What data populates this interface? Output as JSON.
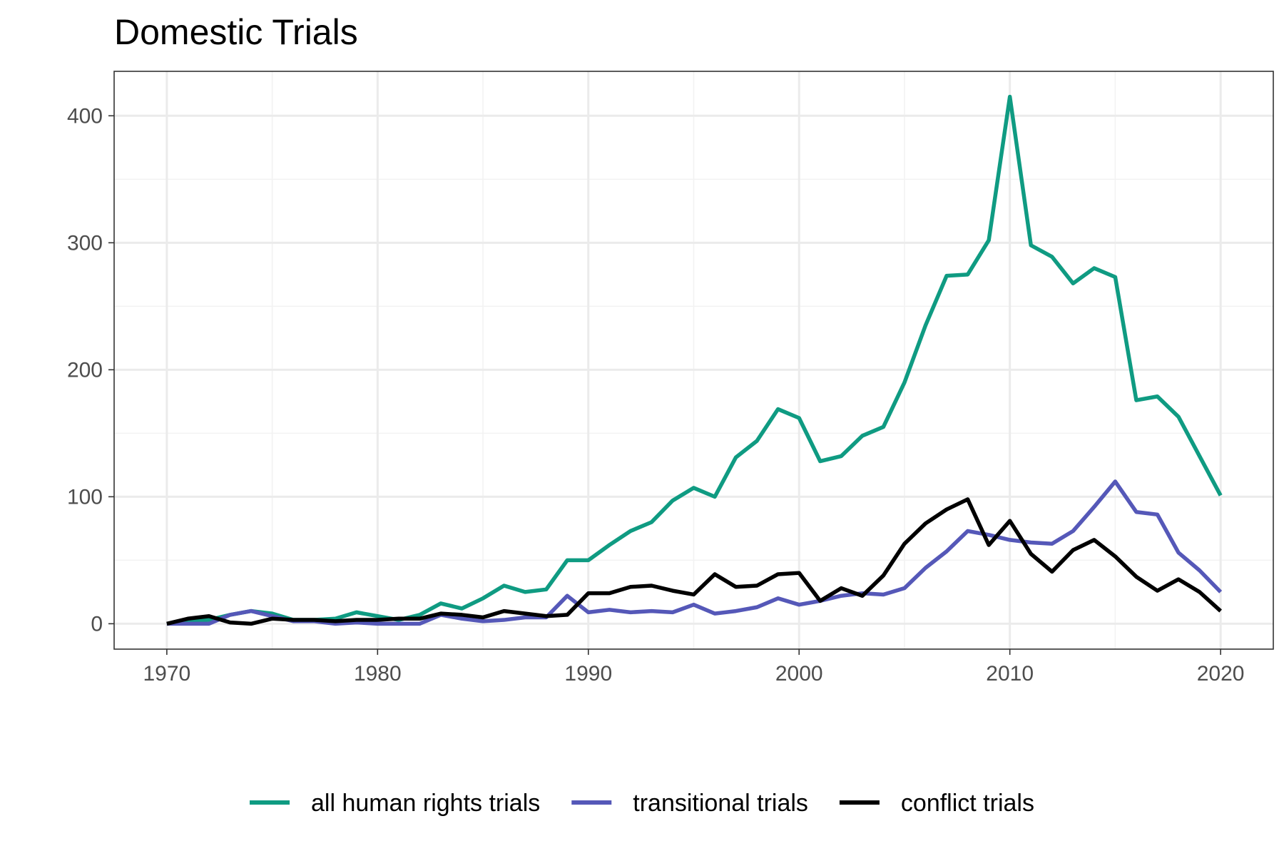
{
  "chart_data": {
    "type": "line",
    "title": "Domestic Trials",
    "xlabel": "",
    "ylabel": "",
    "xlim": [
      1967.5,
      2022.5
    ],
    "ylim": [
      -20,
      435
    ],
    "x_ticks": [
      1970,
      1980,
      1990,
      2000,
      2010,
      2020
    ],
    "y_ticks": [
      0,
      100,
      200,
      300,
      400
    ],
    "grid": true,
    "legend_position": "bottom",
    "x": [
      1970,
      1971,
      1972,
      1973,
      1974,
      1975,
      1976,
      1977,
      1978,
      1979,
      1980,
      1981,
      1982,
      1983,
      1984,
      1985,
      1986,
      1987,
      1988,
      1989,
      1990,
      1991,
      1992,
      1993,
      1994,
      1995,
      1996,
      1997,
      1998,
      1999,
      2000,
      2001,
      2002,
      2003,
      2004,
      2005,
      2006,
      2007,
      2008,
      2009,
      2010,
      2011,
      2012,
      2013,
      2014,
      2015,
      2016,
      2017,
      2018,
      2019,
      2020
    ],
    "series": [
      {
        "name": "all human rights trials",
        "color": "#0f9b82",
        "values": [
          0,
          2,
          3,
          7,
          10,
          8,
          3,
          3,
          4,
          9,
          6,
          3,
          7,
          16,
          12,
          20,
          30,
          25,
          27,
          50,
          50,
          62,
          73,
          80,
          97,
          107,
          100,
          131,
          144,
          169,
          162,
          128,
          132,
          148,
          155,
          190,
          235,
          274,
          275,
          302,
          415,
          298,
          289,
          268,
          280,
          273,
          176,
          179,
          163,
          132,
          101
        ]
      },
      {
        "name": "transitional trials",
        "color": "#5558b8",
        "values": [
          0,
          0,
          0,
          7,
          10,
          6,
          2,
          2,
          0,
          1,
          0,
          0,
          0,
          7,
          4,
          2,
          3,
          5,
          5,
          22,
          9,
          11,
          9,
          10,
          9,
          15,
          8,
          10,
          13,
          20,
          15,
          18,
          22,
          24,
          23,
          28,
          44,
          57,
          73,
          70,
          66,
          64,
          63,
          73,
          92,
          112,
          88,
          86,
          56,
          42,
          25
        ]
      },
      {
        "name": "conflict trials",
        "color": "#000000",
        "values": [
          0,
          4,
          6,
          1,
          0,
          4,
          3,
          3,
          2,
          3,
          3,
          4,
          4,
          8,
          7,
          5,
          10,
          8,
          6,
          7,
          24,
          24,
          29,
          30,
          26,
          23,
          39,
          29,
          30,
          39,
          40,
          18,
          28,
          22,
          38,
          63,
          79,
          90,
          98,
          62,
          81,
          55,
          41,
          58,
          66,
          53,
          37,
          26,
          35,
          25,
          10
        ]
      }
    ]
  }
}
